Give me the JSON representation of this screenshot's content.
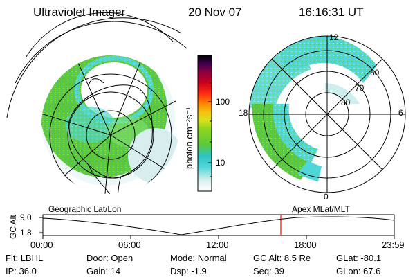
{
  "header": {
    "instrument": "Ultraviolet Imager",
    "date": "20 Nov 07",
    "time": "16:16:31 UT"
  },
  "colorbar": {
    "unit_label": "photon cm⁻²s⁻¹",
    "ticks": [
      "100",
      "10"
    ],
    "scale": "log"
  },
  "right_map": {
    "mlt_labels": [
      "12",
      "18",
      "6",
      "0"
    ],
    "lat_labels": [
      "60",
      "70",
      "80"
    ]
  },
  "panels": {
    "left_caption": "Geographic Lat/Lon",
    "right_caption": "Apex MLat/MLT"
  },
  "altitude_plot": {
    "ylabel": "GC Alt",
    "yticks": [
      "9.0",
      "1.8"
    ],
    "xticks": [
      "00:00",
      "06:00",
      "12:00",
      "18:00",
      "23:59"
    ],
    "current_time_marker_color": "#ff0000"
  },
  "status": {
    "row1": [
      {
        "label": "Flt:",
        "value": "LBHL"
      },
      {
        "label": "Door:",
        "value": "Open"
      },
      {
        "label": "Mode:",
        "value": "Normal"
      },
      {
        "label": "GC Alt:",
        "value": "8.5 Re"
      },
      {
        "label": "GLat:",
        "value": "-80.1"
      }
    ],
    "row2": [
      {
        "label": "IP:",
        "value": "36.0"
      },
      {
        "label": "Gain:",
        "value": "14"
      },
      {
        "label": "Dsp:",
        "value": "-1.9"
      },
      {
        "label": "Seq:",
        "value": "39"
      },
      {
        "label": "GLon:",
        "value": "67.6"
      }
    ]
  },
  "colors": {
    "oval_green": "#5ac83c",
    "oval_light": "#7fe070",
    "oval_cyan": "#4fd6d6",
    "oval_faint": "#cfeeee",
    "marker_red": "#ff0000"
  }
}
